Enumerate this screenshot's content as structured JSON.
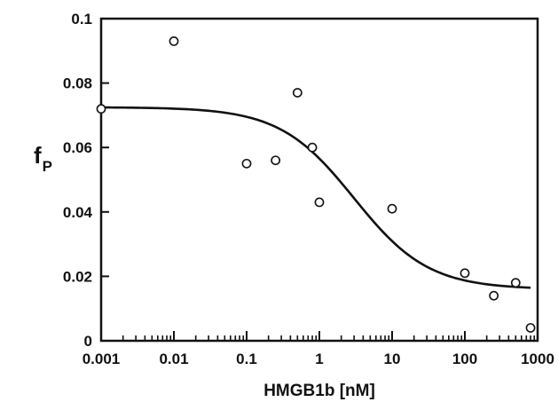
{
  "chart_data": {
    "type": "scatter",
    "xscale": "log",
    "xlabel": "HMGB1b [nM]",
    "ylabel_main": "f",
    "ylabel_sub": "P",
    "xlim": [
      0.001,
      1000
    ],
    "ylim": [
      0,
      0.1
    ],
    "x_ticks": [
      0.001,
      0.01,
      0.1,
      1,
      10,
      100,
      1000
    ],
    "x_tick_labels": [
      "0.001",
      "0.01",
      "0.1",
      "1",
      "10",
      "100",
      "1000"
    ],
    "y_ticks": [
      0,
      0.02,
      0.04,
      0.06,
      0.08,
      0.1
    ],
    "y_tick_labels": [
      "0",
      "0.02",
      "0.04",
      "0.06",
      "0.08",
      "0.1"
    ],
    "grid": false,
    "points": [
      {
        "x": 0.001,
        "y": 0.072
      },
      {
        "x": 0.01,
        "y": 0.093
      },
      {
        "x": 0.1,
        "y": 0.055
      },
      {
        "x": 0.25,
        "y": 0.056
      },
      {
        "x": 0.5,
        "y": 0.077
      },
      {
        "x": 0.8,
        "y": 0.06
      },
      {
        "x": 1.0,
        "y": 0.043
      },
      {
        "x": 10,
        "y": 0.041
      },
      {
        "x": 100,
        "y": 0.021
      },
      {
        "x": 250,
        "y": 0.014
      },
      {
        "x": 500,
        "y": 0.018
      },
      {
        "x": 800,
        "y": 0.004
      }
    ],
    "fit_curve": {
      "type": "sigmoid",
      "top": 0.0725,
      "bottom": 0.016,
      "ec50": 3.0,
      "hill": 0.85,
      "x_range": [
        0.001,
        800
      ]
    }
  }
}
